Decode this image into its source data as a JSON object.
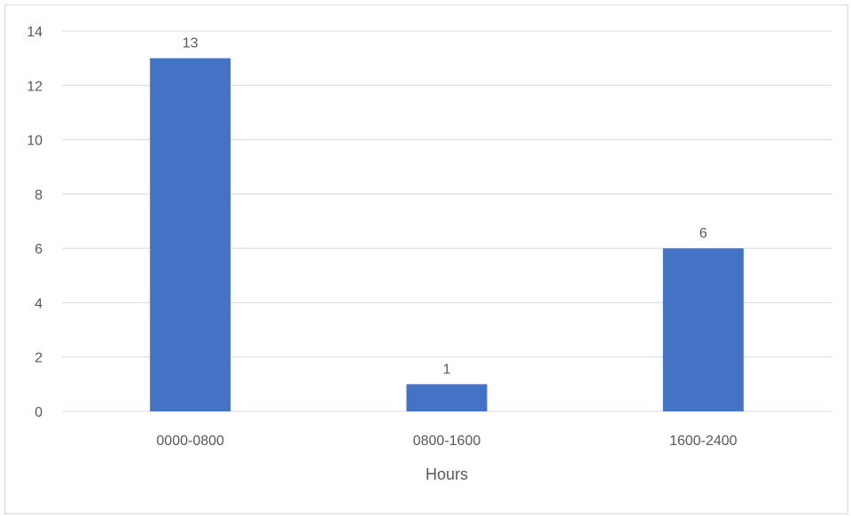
{
  "chart_data": {
    "type": "bar",
    "categories": [
      "0000-0800",
      "0800-1600",
      "1600-2400"
    ],
    "values": [
      13,
      1,
      6
    ],
    "data_labels": [
      "13",
      "1",
      "6"
    ],
    "title": "",
    "xlabel": "Hours",
    "ylabel": "",
    "ylim": [
      0,
      14
    ],
    "yticks": [
      0,
      2,
      4,
      6,
      8,
      10,
      12,
      14
    ],
    "ytick_labels": [
      "0",
      "2",
      "4",
      "6",
      "8",
      "10",
      "12",
      "14"
    ],
    "grid": true,
    "legend": "none",
    "colors": {
      "bar": "#4472c4",
      "grid": "#d9d9d9",
      "text": "#595959"
    }
  }
}
